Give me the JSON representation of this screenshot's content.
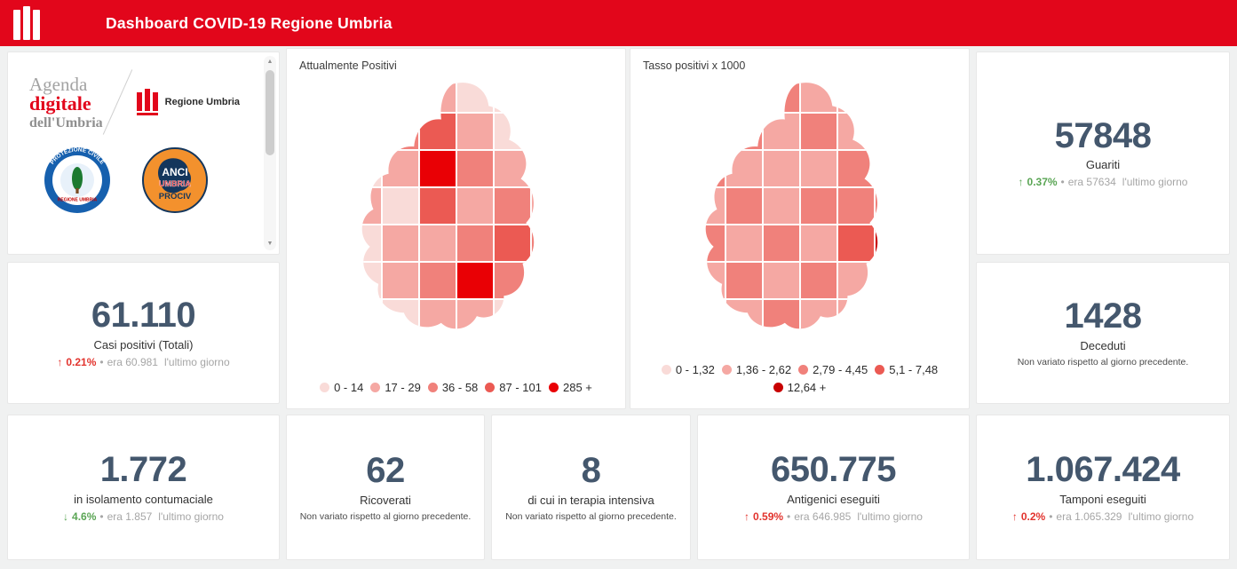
{
  "colors": {
    "header_bg": "#e2061b",
    "stat_number": "#44576d",
    "positive": "#5aa554",
    "negative": "#e2332d",
    "muted": "#a6a6a6"
  },
  "header": {
    "title": "Dashboard COVID-19 Regione Umbria"
  },
  "ui": {
    "bullet": "•",
    "scroll_up": "▲",
    "scroll_down": "▼"
  },
  "logos": {
    "agenda": {
      "word1": "Agenda",
      "word2": "digitale",
      "word3": "dell'Umbria"
    },
    "regione_umbria": "Regione Umbria",
    "protezione_civile": {
      "arc_top": "PROTEZIONE CIVILE",
      "label_bottom": "REGIONE UMBRIA"
    },
    "anci": {
      "line1": "ANCI",
      "line2": "UMBRIA",
      "line3": "PROCIV"
    }
  },
  "maps": [
    {
      "title": "Attualmente Positivi",
      "legend": [
        {
          "label": "0 - 14",
          "color": "#f9dbd8"
        },
        {
          "label": "17 - 29",
          "color": "#f5a8a3"
        },
        {
          "label": "36 - 58",
          "color": "#f0817b"
        },
        {
          "label": "87 - 101",
          "color": "#eb5a53"
        },
        {
          "label": "285 +",
          "color": "#e90005"
        }
      ],
      "cells": [
        [
          0,
          1,
          1,
          0,
          0,
          0
        ],
        [
          1,
          2,
          3,
          1,
          0,
          0
        ],
        [
          0,
          1,
          4,
          2,
          1,
          0
        ],
        [
          1,
          0,
          3,
          1,
          2,
          1
        ],
        [
          0,
          1,
          1,
          2,
          3,
          2
        ],
        [
          0,
          1,
          2,
          4,
          2,
          1
        ],
        [
          0,
          0,
          1,
          1,
          0,
          0
        ]
      ]
    },
    {
      "title": "Tasso positivi x 1000",
      "legend": [
        {
          "label": "0 - 1,32",
          "color": "#f9dbd8"
        },
        {
          "label": "1,36 - 2,62",
          "color": "#f5a8a3"
        },
        {
          "label": "2,79 - 4,45",
          "color": "#f0817b"
        },
        {
          "label": "5,1 - 7,48",
          "color": "#eb5a53"
        },
        {
          "label": "12,64 +",
          "color": "#c80000"
        }
      ],
      "cells": [
        [
          1,
          1,
          2,
          1,
          1,
          0
        ],
        [
          1,
          2,
          1,
          2,
          1,
          1
        ],
        [
          2,
          1,
          1,
          1,
          2,
          1
        ],
        [
          1,
          2,
          1,
          2,
          2,
          2
        ],
        [
          2,
          1,
          2,
          1,
          3,
          4
        ],
        [
          1,
          2,
          1,
          2,
          1,
          1
        ],
        [
          0,
          1,
          2,
          1,
          1,
          0
        ]
      ]
    }
  ],
  "stats": {
    "guariti": {
      "value": "57848",
      "label": "Guariti",
      "arrow": "↑",
      "delta": "0.37%",
      "era": "era 57634",
      "suffix": "l'ultimo giorno",
      "trend_color": "#5aa554"
    },
    "casi_positivi": {
      "value": "61.110",
      "label": "Casi positivi (Totali)",
      "arrow": "↑",
      "delta": "0.21%",
      "era": "era 60.981",
      "suffix": "l'ultimo giorno",
      "trend_color": "#e2332d"
    },
    "deceduti": {
      "value": "1428",
      "label": "Deceduti",
      "note": "Non variato rispetto al giorno precedente."
    },
    "isolamento": {
      "value": "1.772",
      "label": "in isolamento contumaciale",
      "arrow": "↓",
      "delta": "4.6%",
      "era": "era 1.857",
      "suffix": "l'ultimo giorno",
      "trend_color": "#5aa554"
    },
    "ricoverati": {
      "value": "62",
      "label": "Ricoverati",
      "note": "Non variato rispetto al giorno precedente."
    },
    "terapia_intensiva": {
      "value": "8",
      "label": "di cui in terapia intensiva",
      "note": "Non variato rispetto al giorno precedente."
    },
    "antigenici": {
      "value": "650.775",
      "label": "Antigenici eseguiti",
      "arrow": "↑",
      "delta": "0.59%",
      "era": "era 646.985",
      "suffix": "l'ultimo giorno",
      "trend_color": "#e2332d"
    },
    "tamponi": {
      "value": "1.067.424",
      "label": "Tamponi eseguiti",
      "arrow": "↑",
      "delta": "0.2%",
      "era": "era 1.065.329",
      "suffix": "l'ultimo giorno",
      "trend_color": "#e2332d"
    }
  }
}
